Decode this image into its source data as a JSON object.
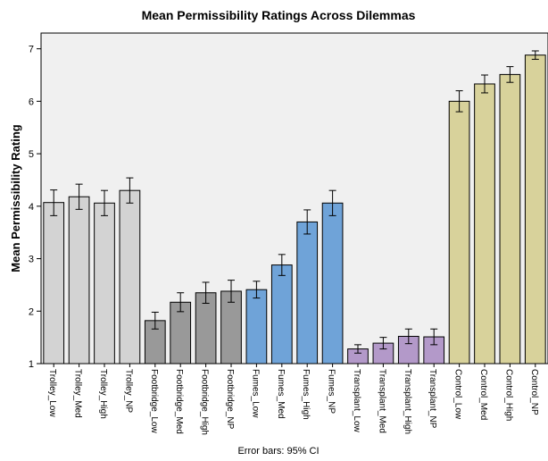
{
  "chart_data": {
    "type": "bar",
    "title": "Mean Permissibility Ratings Across Dilemmas",
    "xlabel": "",
    "ylabel": "Mean Permissibility Rating",
    "ylim": [
      1,
      7.3
    ],
    "yticks": [
      1,
      2,
      3,
      4,
      5,
      6,
      7
    ],
    "grid": false,
    "footnote": "Error bars: 95% CI",
    "categories": [
      "Trolley_Low",
      "Trolley_Med",
      "Trolley_High",
      "Trolley_NP",
      "Footbridge_Low",
      "Footbridge_Med",
      "Footbridge_High",
      "Footbridge_NP",
      "Fumes_Low",
      "Fumes_Med",
      "Fumes_High",
      "Fumes_NP",
      "Transplant_Low",
      "Transplant_Med",
      "Transplant_High",
      "Transplant_NP",
      "Control_Low",
      "Control_Med",
      "Control_High",
      "Control_NP"
    ],
    "values": [
      4.07,
      4.18,
      4.06,
      4.3,
      1.82,
      2.17,
      2.35,
      2.38,
      2.41,
      2.88,
      3.7,
      4.06,
      1.28,
      1.39,
      1.52,
      1.51,
      6.0,
      6.33,
      6.51,
      6.88
    ],
    "ci_low": [
      3.82,
      3.94,
      3.82,
      4.06,
      1.66,
      1.99,
      2.15,
      2.17,
      2.25,
      2.68,
      3.47,
      3.82,
      1.2,
      1.28,
      1.38,
      1.36,
      5.8,
      6.16,
      6.36,
      6.8
    ],
    "ci_high": [
      4.31,
      4.42,
      4.3,
      4.54,
      1.98,
      2.35,
      2.55,
      2.59,
      2.57,
      3.08,
      3.93,
      4.3,
      1.36,
      1.5,
      1.66,
      1.66,
      6.2,
      6.5,
      6.66,
      6.96
    ],
    "colors": [
      "#d3d3d3",
      "#d3d3d3",
      "#d3d3d3",
      "#d3d3d3",
      "#999999",
      "#999999",
      "#999999",
      "#999999",
      "#6fa3d8",
      "#6fa3d8",
      "#6fa3d8",
      "#6fa3d8",
      "#b399c9",
      "#b399c9",
      "#b399c9",
      "#b399c9",
      "#d8d29b",
      "#d8d29b",
      "#d8d29b",
      "#d8d29b"
    ],
    "plot_background": "#f0f0f0"
  }
}
